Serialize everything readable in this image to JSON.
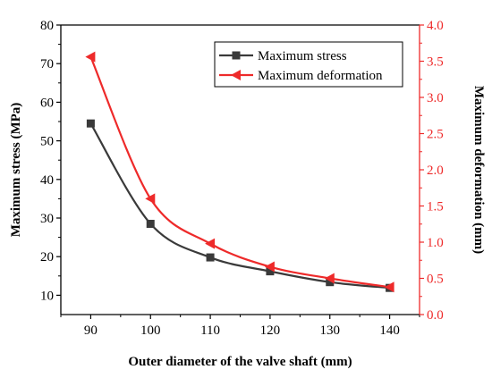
{
  "chart_data": {
    "type": "line",
    "title": "",
    "xlabel": "Outer diameter of the valve shaft (mm)",
    "ylabel_left": "Maximum stress (MPa)",
    "ylabel_right": "Maximum deformation (mm)",
    "x": [
      90,
      100,
      110,
      120,
      130,
      140
    ],
    "xlim": [
      85,
      145
    ],
    "xticks": [
      "90",
      "100",
      "110",
      "120",
      "130",
      "140"
    ],
    "ylim_left": [
      5,
      80
    ],
    "yticks_left": [
      "10",
      "20",
      "30",
      "40",
      "50",
      "60",
      "70",
      "80"
    ],
    "ylim_right": [
      0,
      4
    ],
    "yticks_right": [
      "0.0",
      "0.5",
      "1.0",
      "1.5",
      "2.0",
      "2.5",
      "3.0",
      "3.5",
      "4.0"
    ],
    "grid": false,
    "legend_position": "top-right",
    "series": [
      {
        "name": "Maximum stress",
        "axis": "left",
        "marker": "square",
        "color": "#3a3a3a",
        "values": [
          54.5,
          28.5,
          19.8,
          16.2,
          13.4,
          11.9
        ]
      },
      {
        "name": "Maximum deformation",
        "axis": "right",
        "marker": "triangle-left",
        "color": "#ee2a2a",
        "values": [
          3.56,
          1.6,
          0.98,
          0.66,
          0.5,
          0.38
        ]
      }
    ]
  }
}
